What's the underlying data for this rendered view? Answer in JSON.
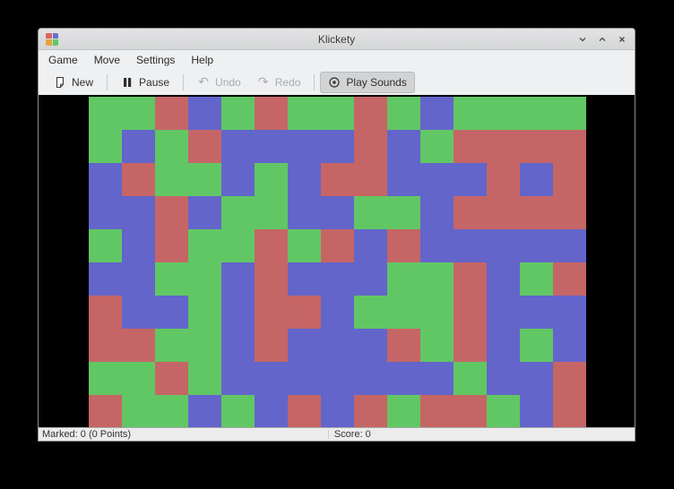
{
  "window": {
    "title": "Klickety",
    "icon_colors": [
      "#d9655f",
      "#6670d0",
      "#e8a33d",
      "#62c964"
    ]
  },
  "menubar": {
    "items": [
      "Game",
      "Move",
      "Settings",
      "Help"
    ]
  },
  "toolbar": {
    "new_label": "New",
    "pause_label": "Pause",
    "undo_label": "Undo",
    "redo_label": "Redo",
    "play_sounds_label": "Play Sounds",
    "undo_glyph": "↶",
    "redo_glyph": "↷"
  },
  "board": {
    "columns": 15,
    "rows_count": 10,
    "palette": {
      "G": "#61c764",
      "R": "#c66566",
      "B": "#6365ca"
    },
    "rows": [
      "GGRBGRGGRGBGGGG",
      "GBGRBBBBRBGRRRR",
      "BRGGBGBRRBBBRBR",
      "BBRBGGBBGGBRRRR",
      "GBRGGRGRBRBBBBB",
      "BBGGBRBBBGGRBGR",
      "RBBGBRRBGGGRBBB",
      "RRGGBRBBBRGRBGB",
      "GGRGBBBBBBBGBBR",
      "RGGBGBRBRGRRGBR"
    ]
  },
  "statusbar": {
    "marked": "Marked: 0 (0 Points)",
    "score": "Score: 0"
  }
}
